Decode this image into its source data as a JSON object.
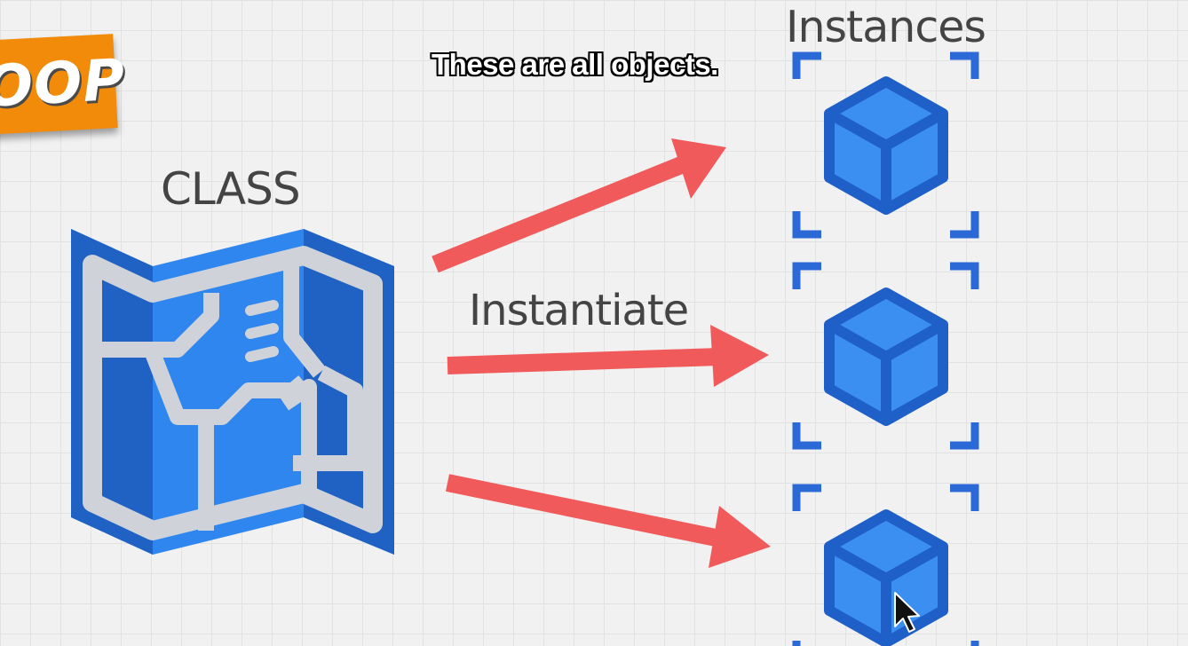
{
  "badge": {
    "text": "OOP",
    "color": "#f28b0a"
  },
  "caption": "These are all objects.",
  "labels": {
    "class": "CLASS",
    "instantiate": "Instantiate",
    "instances": "Instances"
  },
  "colors": {
    "arrow": "#f05a5a",
    "blueprint_light": "#2f86ef",
    "blueprint_dark": "#1f62c4",
    "blueprint_lines": "#cfd3d9",
    "cube_fill": "#3a8ff0",
    "cube_stroke": "#1f5fc8",
    "bracket": "#2a69d6",
    "label_text": "#444444"
  },
  "icons": {
    "class": "blueprint-map-icon",
    "instance": "cube-icon",
    "cursor": "mouse-pointer-icon"
  }
}
